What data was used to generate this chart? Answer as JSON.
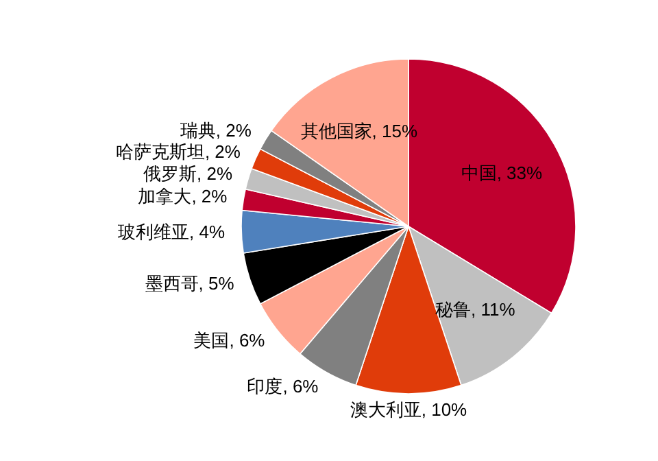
{
  "chart_data": {
    "type": "pie",
    "categories": [
      "中国",
      "秘鲁",
      "澳大利亚",
      "印度",
      "美国",
      "墨西哥",
      "玻利维亚",
      "加拿大",
      "俄罗斯",
      "哈萨克斯坦",
      "瑞典",
      "其他国家"
    ],
    "values": [
      33,
      11,
      10,
      6,
      6,
      5,
      4,
      2,
      2,
      2,
      2,
      15
    ],
    "value_labels": [
      "33%",
      "11%",
      "10%",
      "6%",
      "6%",
      "5%",
      "4%",
      "2%",
      "2%",
      "2%",
      "2%",
      "15%"
    ],
    "colors": [
      "#c0002f",
      "#c0c0c0",
      "#e03c0a",
      "#808080",
      "#ffa590",
      "#000000",
      "#4f81bd",
      "#c0002f",
      "#c0c0c0",
      "#e03c0a",
      "#808080",
      "#ffa590"
    ]
  }
}
